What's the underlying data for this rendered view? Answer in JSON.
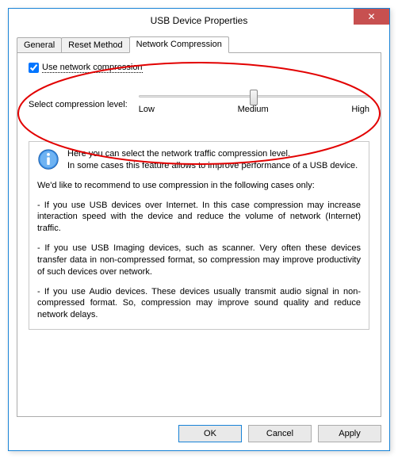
{
  "window": {
    "title": "USB Device Properties",
    "close_glyph": "✕"
  },
  "tabs": {
    "items": [
      {
        "label": "General",
        "active": false
      },
      {
        "label": "Reset Method",
        "active": false
      },
      {
        "label": "Network Compression",
        "active": true
      }
    ]
  },
  "compression": {
    "checkbox_label": "Use network compression",
    "checked": true,
    "slider_label": "Select compression level:",
    "levels": [
      "Low",
      "Medium",
      "High"
    ],
    "value_percent": 50
  },
  "info": {
    "line1": "Here you can select the network traffic compression level.",
    "line2": "In some cases this feature allows to improve performance of a USB device.",
    "recommend": "We'd like to recommend to use compression in the following cases only:",
    "case1": "- If you use USB devices over Internet. In this case compression may increase interaction speed with the device and reduce the volume of network (Internet) traffic.",
    "case2": "- If you use USB Imaging devices, such as scanner. Very often these devices transfer data in non-compressed format, so compression may improve productivity of such devices over network.",
    "case3": "- If you use Audio devices. These devices usually transmit audio signal in non-compressed format. So, compression may improve sound quality and reduce network delays."
  },
  "buttons": {
    "ok": "OK",
    "cancel": "Cancel",
    "apply": "Apply"
  },
  "annotation": {
    "ellipse_color": "#e20000",
    "ellipse_stroke_width": 2
  },
  "colors": {
    "window_border": "#1883d7",
    "close_bg": "#c75050",
    "tab_border": "#acacac"
  }
}
